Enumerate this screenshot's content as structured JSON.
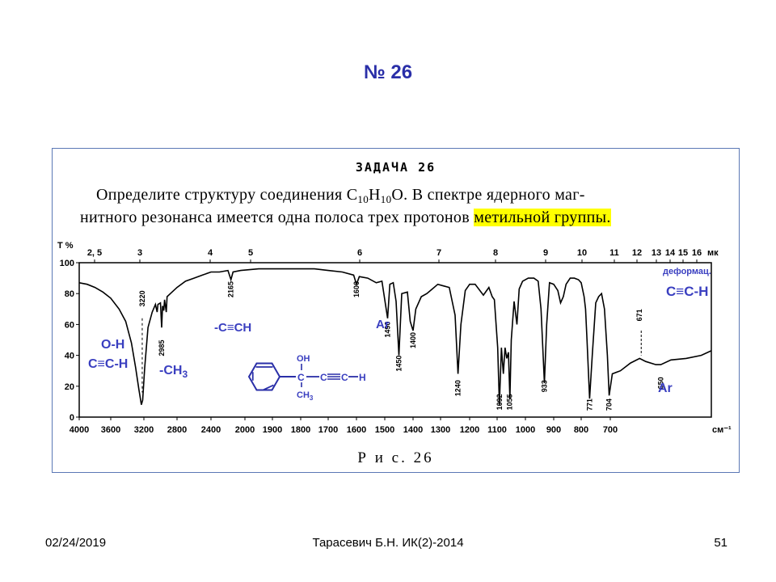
{
  "slide": {
    "title": "№ 26",
    "footer_date": "02/24/2019",
    "footer_center": "Тарасевич Б.Н. ИК(2)-2014",
    "footer_page": "51"
  },
  "task": {
    "heading": "ЗАДАЧА 26",
    "line1_a": "Определите структуру соединения C",
    "formula_c_sub": "10",
    "formula_h": "H",
    "formula_h_sub": "10",
    "line1_b": "O. В спектре ядерного маг-",
    "line2_a": "нитного резонанса имеется одна полоса трех протонов ",
    "line2_highlight": "метильной группы.",
    "caption": "Р и с. 26"
  },
  "chart_data": {
    "type": "line",
    "title": "",
    "ylabel": "T %",
    "xlabel_unit": "см⁻¹",
    "top_axis_unit": "мк",
    "ylim": [
      0,
      100
    ],
    "y_ticks": [
      "100",
      "80",
      "60",
      "40",
      "20",
      "0"
    ],
    "x_ticks": [
      "4000",
      "3600",
      "3200",
      "2800",
      "2400",
      "2000",
      "1900",
      "1800",
      "1700",
      "1600",
      "1500",
      "1400",
      "1300",
      "1200",
      "1100",
      "1000",
      "900",
      "800",
      "700"
    ],
    "top_ticks": [
      "2, 5",
      "3",
      "4",
      "5",
      "6",
      "7",
      "8",
      "9",
      "10",
      "11",
      "12",
      "13",
      "14",
      "15",
      "16"
    ],
    "peak_labels": [
      {
        "text": "3220",
        "x": 3220,
        "y": 82
      },
      {
        "text": "2985",
        "x": 2985,
        "y": 50
      },
      {
        "text": "2165",
        "x": 2165,
        "y": 88
      },
      {
        "text": "1600",
        "x": 1600,
        "y": 88
      },
      {
        "text": "1490",
        "x": 1490,
        "y": 62
      },
      {
        "text": "1450",
        "x": 1450,
        "y": 40
      },
      {
        "text": "1400",
        "x": 1400,
        "y": 55
      },
      {
        "text": "1240",
        "x": 1240,
        "y": 24
      },
      {
        "text": "1092",
        "x": 1092,
        "y": 15
      },
      {
        "text": "1055",
        "x": 1055,
        "y": 15
      },
      {
        "text": "933",
        "x": 933,
        "y": 24
      },
      {
        "text": "771",
        "x": 771,
        "y": 12
      },
      {
        "text": "704",
        "x": 704,
        "y": 12
      },
      {
        "text": "671",
        "x": 671,
        "y": 70
      },
      {
        "text": "650",
        "x": 650,
        "y": 26
      }
    ],
    "series": [
      {
        "points": [
          [
            4000,
            87
          ],
          [
            3900,
            86
          ],
          [
            3800,
            84
          ],
          [
            3700,
            81
          ],
          [
            3600,
            77
          ],
          [
            3500,
            70
          ],
          [
            3420,
            62
          ],
          [
            3350,
            48
          ],
          [
            3300,
            32
          ],
          [
            3260,
            18
          ],
          [
            3230,
            8
          ],
          [
            3215,
            11
          ],
          [
            3190,
            32
          ],
          [
            3150,
            58
          ],
          [
            3100,
            68
          ],
          [
            3060,
            73
          ],
          [
            3040,
            68
          ],
          [
            3030,
            73
          ],
          [
            3000,
            74
          ],
          [
            2985,
            58
          ],
          [
            2975,
            72
          ],
          [
            2960,
            69
          ],
          [
            2950,
            76
          ],
          [
            2930,
            68
          ],
          [
            2920,
            78
          ],
          [
            2880,
            80
          ],
          [
            2800,
            84
          ],
          [
            2700,
            88
          ],
          [
            2600,
            90
          ],
          [
            2500,
            92
          ],
          [
            2400,
            94
          ],
          [
            2300,
            94
          ],
          [
            2200,
            95
          ],
          [
            2165,
            89
          ],
          [
            2140,
            94
          ],
          [
            2050,
            95
          ],
          [
            1950,
            96
          ],
          [
            1850,
            96
          ],
          [
            1800,
            96
          ],
          [
            1750,
            96
          ],
          [
            1700,
            95
          ],
          [
            1650,
            94
          ],
          [
            1610,
            92
          ],
          [
            1600,
            86
          ],
          [
            1590,
            91
          ],
          [
            1560,
            90
          ],
          [
            1530,
            87
          ],
          [
            1510,
            88
          ],
          [
            1490,
            64
          ],
          [
            1482,
            86
          ],
          [
            1470,
            87
          ],
          [
            1460,
            75
          ],
          [
            1450,
            40
          ],
          [
            1440,
            80
          ],
          [
            1420,
            81
          ],
          [
            1410,
            62
          ],
          [
            1400,
            56
          ],
          [
            1390,
            70
          ],
          [
            1370,
            78
          ],
          [
            1350,
            80
          ],
          [
            1330,
            83
          ],
          [
            1310,
            86
          ],
          [
            1290,
            85
          ],
          [
            1270,
            84
          ],
          [
            1250,
            66
          ],
          [
            1240,
            28
          ],
          [
            1230,
            60
          ],
          [
            1215,
            82
          ],
          [
            1200,
            86
          ],
          [
            1180,
            86
          ],
          [
            1150,
            79
          ],
          [
            1130,
            84
          ],
          [
            1118,
            78
          ],
          [
            1110,
            76
          ],
          [
            1098,
            45
          ],
          [
            1092,
            8
          ],
          [
            1085,
            45
          ],
          [
            1078,
            28
          ],
          [
            1072,
            45
          ],
          [
            1066,
            38
          ],
          [
            1060,
            42
          ],
          [
            1055,
            12
          ],
          [
            1050,
            50
          ],
          [
            1040,
            75
          ],
          [
            1030,
            60
          ],
          [
            1022,
            83
          ],
          [
            1010,
            88
          ],
          [
            990,
            90
          ],
          [
            970,
            90
          ],
          [
            955,
            88
          ],
          [
            945,
            70
          ],
          [
            933,
            22
          ],
          [
            925,
            60
          ],
          [
            915,
            87
          ],
          [
            900,
            86
          ],
          [
            885,
            82
          ],
          [
            875,
            74
          ],
          [
            865,
            78
          ],
          [
            855,
            86
          ],
          [
            840,
            90
          ],
          [
            825,
            90
          ],
          [
            810,
            89
          ],
          [
            800,
            87
          ],
          [
            790,
            78
          ],
          [
            785,
            70
          ],
          [
            780,
            50
          ],
          [
            771,
            12
          ],
          [
            762,
            40
          ],
          [
            750,
            74
          ],
          [
            740,
            78
          ],
          [
            730,
            80
          ],
          [
            720,
            70
          ],
          [
            710,
            40
          ],
          [
            704,
            14
          ],
          [
            698,
            28
          ],
          [
            690,
            30
          ],
          [
            680,
            35
          ],
          [
            671,
            38
          ],
          [
            665,
            36
          ],
          [
            655,
            34
          ],
          [
            650,
            34
          ],
          [
            640,
            37
          ],
          [
            625,
            38
          ],
          [
            610,
            40
          ],
          [
            600,
            43
          ]
        ]
      }
    ],
    "annotations": {
      "oh": "O-H",
      "cch_left": "C≡C-H",
      "ch3": "-CH",
      "ch3_sub": "3",
      "ccch": "-C≡CH",
      "ar_mid": "Ar",
      "deform": "деформац.",
      "cch_right": "C≡C-H",
      "ar_right": "Ar"
    },
    "structure": {
      "oh": "OH",
      "c1": "C",
      "c2": "C",
      "c3": "C",
      "h": "H",
      "ch3": "CH",
      "ch3_sub": "3"
    }
  }
}
